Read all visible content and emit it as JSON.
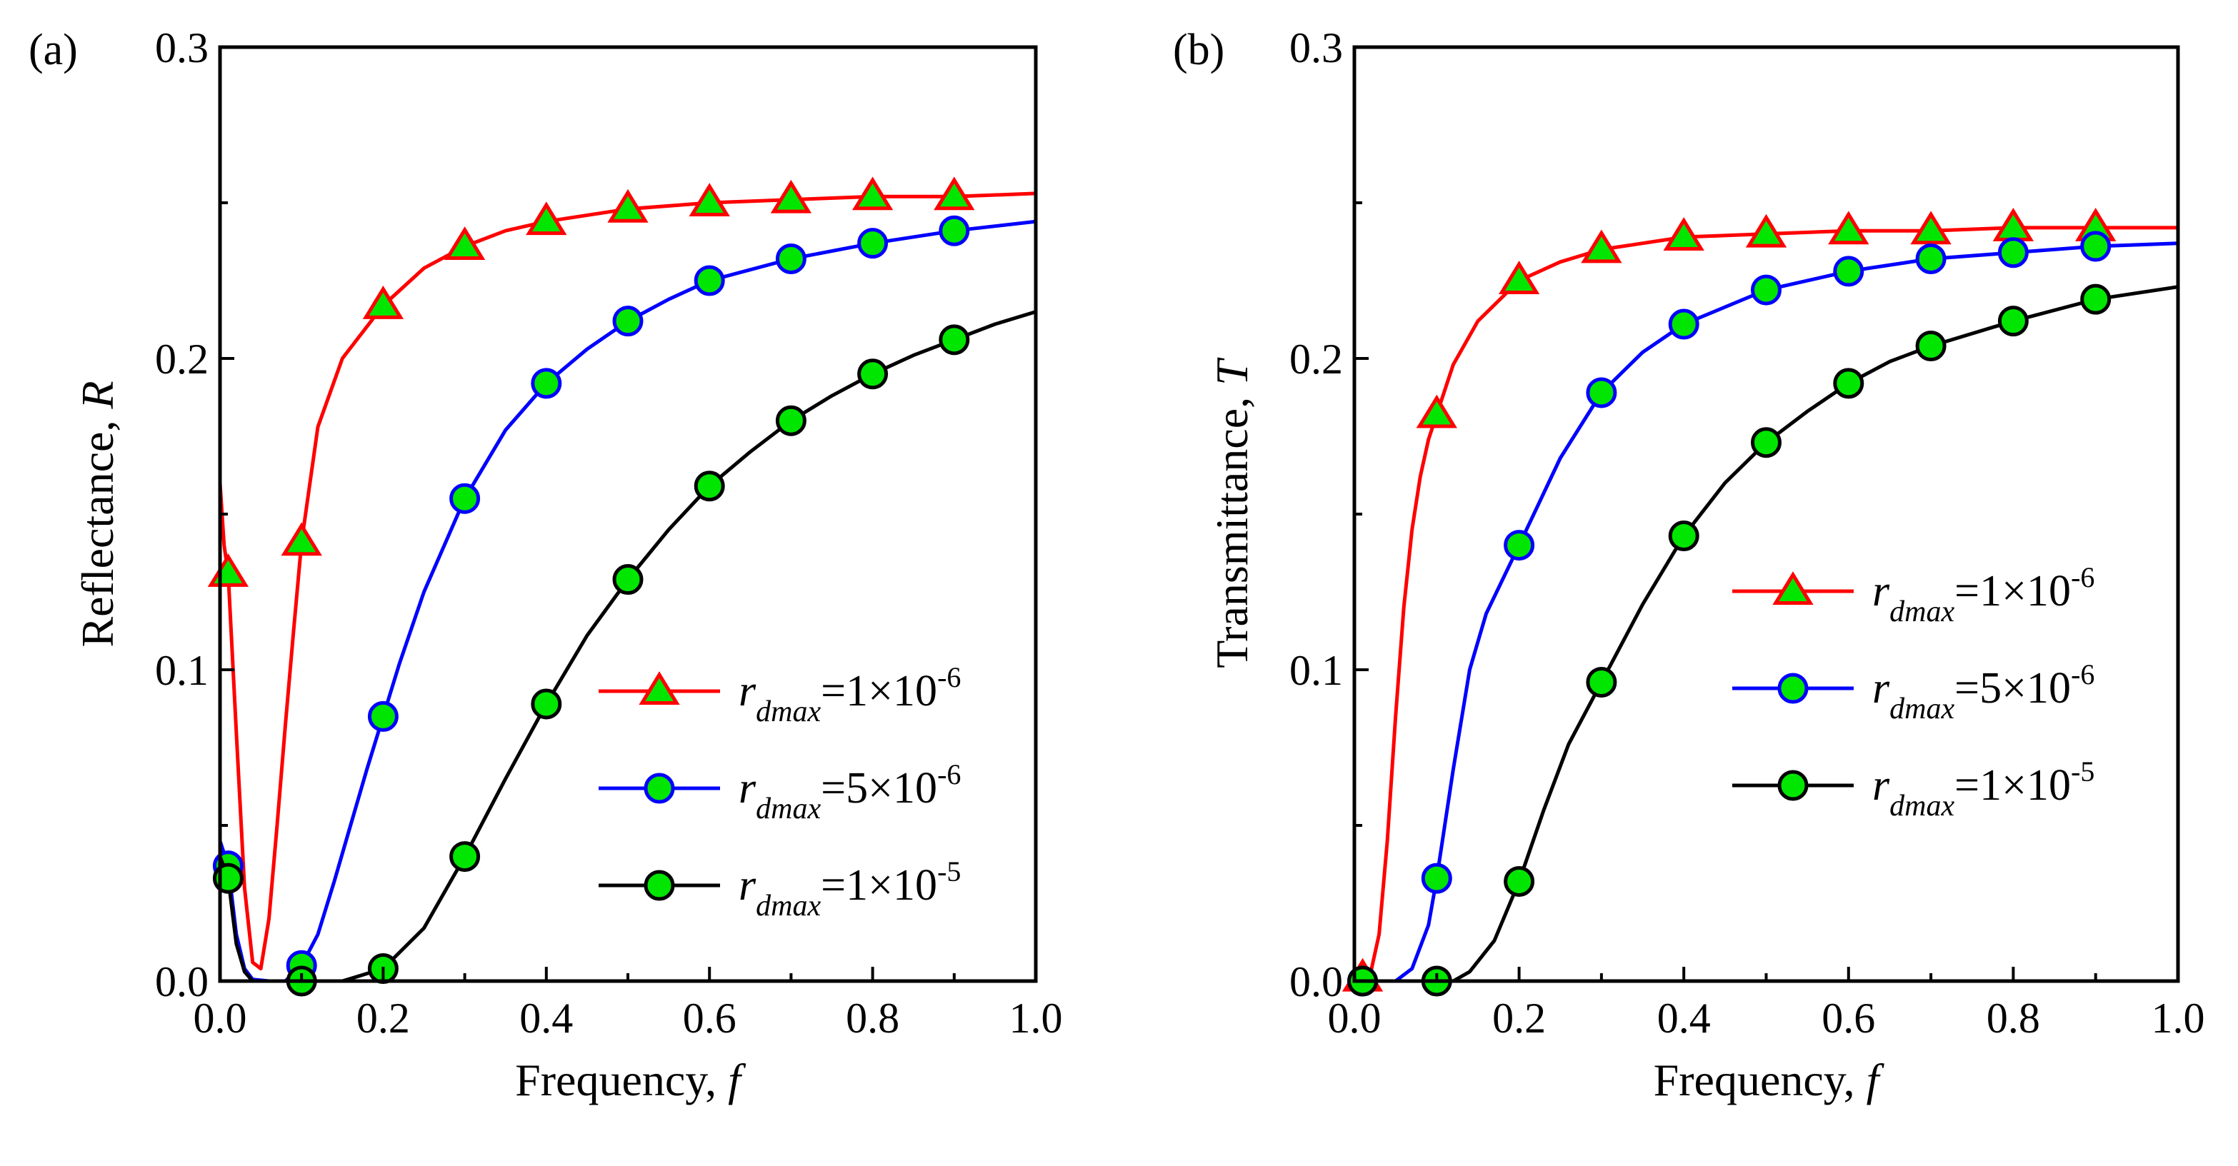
{
  "chart_data": [
    {
      "type": "line",
      "panel_label": "(a)",
      "xlabel": "Frequency, ",
      "xlabel_symbol": "f",
      "ylabel": "Reflectance, ",
      "ylabel_symbol": "R",
      "xlim": [
        0.0,
        1.0
      ],
      "ylim": [
        0.0,
        0.3
      ],
      "xticks": [
        "0.0",
        "0.2",
        "0.4",
        "0.6",
        "0.8",
        "1.0"
      ],
      "yticks": [
        "0.0",
        "0.1",
        "0.2",
        "0.3"
      ],
      "legend_position": "lower-right",
      "series": [
        {
          "name": "r_dmax=1×10^-6",
          "legend_base": "r",
          "legend_sub": "dmax",
          "legend_mid": "=1×10",
          "legend_exp": "-6",
          "line_color": "#ff0000",
          "marker": "triangle",
          "marker_fill": "#00e600",
          "marker_edge": "#ff0000",
          "marker_x": [
            0.01,
            0.1,
            0.2,
            0.3,
            0.4,
            0.5,
            0.6,
            0.7,
            0.8,
            0.9
          ],
          "marker_y": [
            0.131,
            0.141,
            0.217,
            0.236,
            0.244,
            0.248,
            0.25,
            0.251,
            0.252,
            0.252
          ],
          "curve": [
            [
              0.0,
              0.16
            ],
            [
              0.005,
              0.14
            ],
            [
              0.01,
              0.131
            ],
            [
              0.02,
              0.08
            ],
            [
              0.03,
              0.03
            ],
            [
              0.04,
              0.006
            ],
            [
              0.05,
              0.004
            ],
            [
              0.06,
              0.02
            ],
            [
              0.07,
              0.05
            ],
            [
              0.08,
              0.082
            ],
            [
              0.09,
              0.112
            ],
            [
              0.1,
              0.141
            ],
            [
              0.12,
              0.178
            ],
            [
              0.15,
              0.2
            ],
            [
              0.2,
              0.217
            ],
            [
              0.25,
              0.229
            ],
            [
              0.3,
              0.236
            ],
            [
              0.35,
              0.241
            ],
            [
              0.4,
              0.244
            ],
            [
              0.5,
              0.248
            ],
            [
              0.6,
              0.25
            ],
            [
              0.7,
              0.251
            ],
            [
              0.8,
              0.252
            ],
            [
              0.9,
              0.252
            ],
            [
              1.0,
              0.253
            ]
          ]
        },
        {
          "name": "r_dmax=5×10^-6",
          "legend_base": "r",
          "legend_sub": "dmax",
          "legend_mid": "=5×10",
          "legend_exp": "-6",
          "line_color": "#0000ff",
          "marker": "circle",
          "marker_fill": "#00e600",
          "marker_edge": "#0000ff",
          "marker_x": [
            0.01,
            0.1,
            0.2,
            0.3,
            0.4,
            0.5,
            0.6,
            0.7,
            0.8,
            0.9
          ],
          "marker_y": [
            0.037,
            0.005,
            0.085,
            0.155,
            0.192,
            0.212,
            0.225,
            0.232,
            0.237,
            0.241
          ],
          "curve": [
            [
              0.0,
              0.045
            ],
            [
              0.01,
              0.037
            ],
            [
              0.02,
              0.015
            ],
            [
              0.03,
              0.004
            ],
            [
              0.04,
              0.0005
            ],
            [
              0.06,
              0.0
            ],
            [
              0.08,
              0.0
            ],
            [
              0.1,
              0.005
            ],
            [
              0.12,
              0.015
            ],
            [
              0.14,
              0.032
            ],
            [
              0.16,
              0.05
            ],
            [
              0.18,
              0.068
            ],
            [
              0.2,
              0.085
            ],
            [
              0.22,
              0.102
            ],
            [
              0.25,
              0.125
            ],
            [
              0.3,
              0.155
            ],
            [
              0.35,
              0.177
            ],
            [
              0.4,
              0.192
            ],
            [
              0.45,
              0.203
            ],
            [
              0.5,
              0.212
            ],
            [
              0.55,
              0.219
            ],
            [
              0.6,
              0.225
            ],
            [
              0.7,
              0.232
            ],
            [
              0.8,
              0.237
            ],
            [
              0.9,
              0.241
            ],
            [
              1.0,
              0.244
            ]
          ]
        },
        {
          "name": "r_dmax=1×10^-5",
          "legend_base": "r",
          "legend_sub": "dmax",
          "legend_mid": "=1×10",
          "legend_exp": "-5",
          "line_color": "#000000",
          "marker": "circle",
          "marker_fill": "#00e600",
          "marker_edge": "#000000",
          "marker_x": [
            0.01,
            0.1,
            0.2,
            0.3,
            0.4,
            0.5,
            0.6,
            0.7,
            0.8,
            0.9
          ],
          "marker_y": [
            0.033,
            0.0,
            0.004,
            0.04,
            0.089,
            0.129,
            0.159,
            0.18,
            0.195,
            0.206
          ],
          "curve": [
            [
              0.0,
              0.04
            ],
            [
              0.01,
              0.033
            ],
            [
              0.02,
              0.012
            ],
            [
              0.03,
              0.003
            ],
            [
              0.04,
              0.0
            ],
            [
              0.1,
              0.0
            ],
            [
              0.15,
              0.0
            ],
            [
              0.2,
              0.004
            ],
            [
              0.25,
              0.017
            ],
            [
              0.3,
              0.04
            ],
            [
              0.35,
              0.065
            ],
            [
              0.4,
              0.089
            ],
            [
              0.45,
              0.111
            ],
            [
              0.5,
              0.129
            ],
            [
              0.55,
              0.145
            ],
            [
              0.6,
              0.159
            ],
            [
              0.65,
              0.17
            ],
            [
              0.7,
              0.18
            ],
            [
              0.75,
              0.188
            ],
            [
              0.8,
              0.195
            ],
            [
              0.85,
              0.201
            ],
            [
              0.9,
              0.206
            ],
            [
              0.95,
              0.211
            ],
            [
              1.0,
              0.215
            ]
          ]
        }
      ]
    },
    {
      "type": "line",
      "panel_label": "(b)",
      "xlabel": "Frequency, ",
      "xlabel_symbol": "f",
      "ylabel": "Transmittance, ",
      "ylabel_symbol": "T",
      "xlim": [
        0.0,
        1.0
      ],
      "ylim": [
        0.0,
        0.3
      ],
      "xticks": [
        "0.0",
        "0.2",
        "0.4",
        "0.6",
        "0.8",
        "1.0"
      ],
      "yticks": [
        "0.0",
        "0.1",
        "0.2",
        "0.3"
      ],
      "legend_position": "lower-right",
      "series": [
        {
          "name": "r_dmax=1×10^-6",
          "legend_base": "r",
          "legend_sub": "dmax",
          "legend_mid": "=1×10",
          "legend_exp": "-6",
          "line_color": "#ff0000",
          "marker": "triangle",
          "marker_fill": "#00e600",
          "marker_edge": "#ff0000",
          "marker_x": [
            0.01,
            0.1,
            0.2,
            0.3,
            0.4,
            0.5,
            0.6,
            0.7,
            0.8,
            0.9
          ],
          "marker_y": [
            0.001,
            0.182,
            0.225,
            0.235,
            0.239,
            0.24,
            0.241,
            0.241,
            0.242,
            0.242
          ],
          "curve": [
            [
              0.0,
              0.0
            ],
            [
              0.01,
              0.001
            ],
            [
              0.02,
              0.003
            ],
            [
              0.03,
              0.015
            ],
            [
              0.04,
              0.045
            ],
            [
              0.05,
              0.085
            ],
            [
              0.06,
              0.12
            ],
            [
              0.07,
              0.145
            ],
            [
              0.08,
              0.162
            ],
            [
              0.09,
              0.174
            ],
            [
              0.1,
              0.182
            ],
            [
              0.12,
              0.198
            ],
            [
              0.15,
              0.212
            ],
            [
              0.2,
              0.225
            ],
            [
              0.25,
              0.231
            ],
            [
              0.3,
              0.235
            ],
            [
              0.4,
              0.239
            ],
            [
              0.5,
              0.24
            ],
            [
              0.6,
              0.241
            ],
            [
              0.7,
              0.241
            ],
            [
              0.8,
              0.242
            ],
            [
              0.9,
              0.242
            ],
            [
              1.0,
              0.242
            ]
          ]
        },
        {
          "name": "r_dmax=5×10^-6",
          "legend_base": "r",
          "legend_sub": "dmax",
          "legend_mid": "=5×10",
          "legend_exp": "-6",
          "line_color": "#0000ff",
          "marker": "circle",
          "marker_fill": "#00e600",
          "marker_edge": "#0000ff",
          "marker_x": [
            0.01,
            0.1,
            0.2,
            0.3,
            0.4,
            0.5,
            0.6,
            0.7,
            0.8,
            0.9
          ],
          "marker_y": [
            0.0,
            0.033,
            0.14,
            0.189,
            0.211,
            0.222,
            0.228,
            0.232,
            0.234,
            0.236
          ],
          "curve": [
            [
              0.0,
              0.0
            ],
            [
              0.05,
              0.0
            ],
            [
              0.07,
              0.004
            ],
            [
              0.09,
              0.018
            ],
            [
              0.1,
              0.033
            ],
            [
              0.12,
              0.068
            ],
            [
              0.14,
              0.1
            ],
            [
              0.16,
              0.118
            ],
            [
              0.2,
              0.14
            ],
            [
              0.25,
              0.168
            ],
            [
              0.3,
              0.189
            ],
            [
              0.35,
              0.202
            ],
            [
              0.4,
              0.211
            ],
            [
              0.5,
              0.222
            ],
            [
              0.6,
              0.228
            ],
            [
              0.7,
              0.232
            ],
            [
              0.8,
              0.234
            ],
            [
              0.9,
              0.236
            ],
            [
              1.0,
              0.237
            ]
          ]
        },
        {
          "name": "r_dmax=1×10^-5",
          "legend_base": "r",
          "legend_sub": "dmax",
          "legend_mid": "=1×10",
          "legend_exp": "-5",
          "line_color": "#000000",
          "marker": "circle",
          "marker_fill": "#00e600",
          "marker_edge": "#000000",
          "marker_x": [
            0.01,
            0.1,
            0.2,
            0.3,
            0.4,
            0.5,
            0.6,
            0.7,
            0.8,
            0.9
          ],
          "marker_y": [
            0.0,
            0.0,
            0.032,
            0.096,
            0.143,
            0.173,
            0.192,
            0.204,
            0.212,
            0.219
          ],
          "curve": [
            [
              0.0,
              0.0
            ],
            [
              0.12,
              0.0
            ],
            [
              0.14,
              0.003
            ],
            [
              0.17,
              0.013
            ],
            [
              0.2,
              0.032
            ],
            [
              0.23,
              0.055
            ],
            [
              0.26,
              0.076
            ],
            [
              0.3,
              0.096
            ],
            [
              0.35,
              0.121
            ],
            [
              0.4,
              0.143
            ],
            [
              0.45,
              0.16
            ],
            [
              0.5,
              0.173
            ],
            [
              0.55,
              0.183
            ],
            [
              0.6,
              0.192
            ],
            [
              0.65,
              0.199
            ],
            [
              0.7,
              0.204
            ],
            [
              0.8,
              0.212
            ],
            [
              0.9,
              0.219
            ],
            [
              1.0,
              0.223
            ]
          ]
        }
      ]
    }
  ]
}
